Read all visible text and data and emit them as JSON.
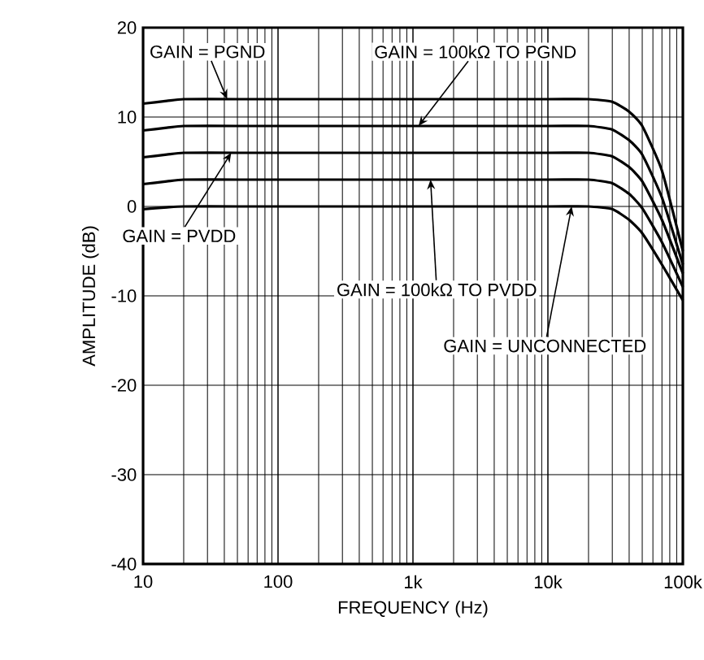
{
  "chart_data": {
    "type": "line",
    "xlabel": "FREQUENCY (Hz)",
    "ylabel": "AMPLITUDE (dB)",
    "log": "x",
    "grid": true,
    "xlim": [
      10,
      100000
    ],
    "ylim": [
      -40,
      20
    ],
    "xticks": [
      10,
      100,
      {
        "value": 1000,
        "label": "1k"
      },
      {
        "value": 10000,
        "label": "10k"
      },
      {
        "value": 100000,
        "label": "100k"
      }
    ],
    "yticks": [
      -40,
      -30,
      -20,
      -10,
      0,
      10,
      20
    ],
    "x": [
      10,
      15,
      20,
      50,
      100,
      1000,
      10000,
      20000,
      30000,
      40000,
      50000,
      70000,
      100000
    ],
    "series": [
      {
        "color": "#000000",
        "values": [
          11.5,
          11.8,
          12,
          12,
          12,
          12,
          12,
          12,
          11.7,
          10.6,
          9,
          4,
          -5
        ]
      },
      {
        "color": "#000000",
        "values": [
          8.5,
          8.8,
          9,
          9,
          9,
          9,
          9,
          9,
          8.6,
          7.4,
          5.8,
          1,
          -6.5
        ]
      },
      {
        "color": "#000000",
        "values": [
          5.5,
          5.8,
          6,
          6,
          6,
          6,
          6,
          6,
          5.6,
          4.4,
          2.8,
          -1.5,
          -7.5
        ]
      },
      {
        "color": "#000000",
        "values": [
          2.5,
          2.8,
          3,
          3,
          3,
          3,
          3,
          3,
          2.6,
          1.4,
          -0.2,
          -4,
          -9
        ]
      },
      {
        "color": "#000000",
        "values": [
          -0.3,
          -0.1,
          0,
          0,
          0,
          0,
          0,
          0,
          -0.3,
          -1.5,
          -3,
          -6.5,
          -10.5
        ]
      }
    ],
    "annotations": [
      {
        "text": "GAIN = PGND",
        "x": 42,
        "y": 12
      },
      {
        "text": "GAIN = 100kΩ TO PGND",
        "x": 1100,
        "y": 9
      },
      {
        "text": "GAIN = PVDD",
        "x": 45,
        "y": 6
      },
      {
        "text": "GAIN = 100kΩ TO PVDD",
        "x": 1350,
        "y": 3
      },
      {
        "text": "GAIN = UNCONNECTED",
        "x": 15000,
        "y": 0
      }
    ],
    "line_style": "solid",
    "marker": "none"
  }
}
